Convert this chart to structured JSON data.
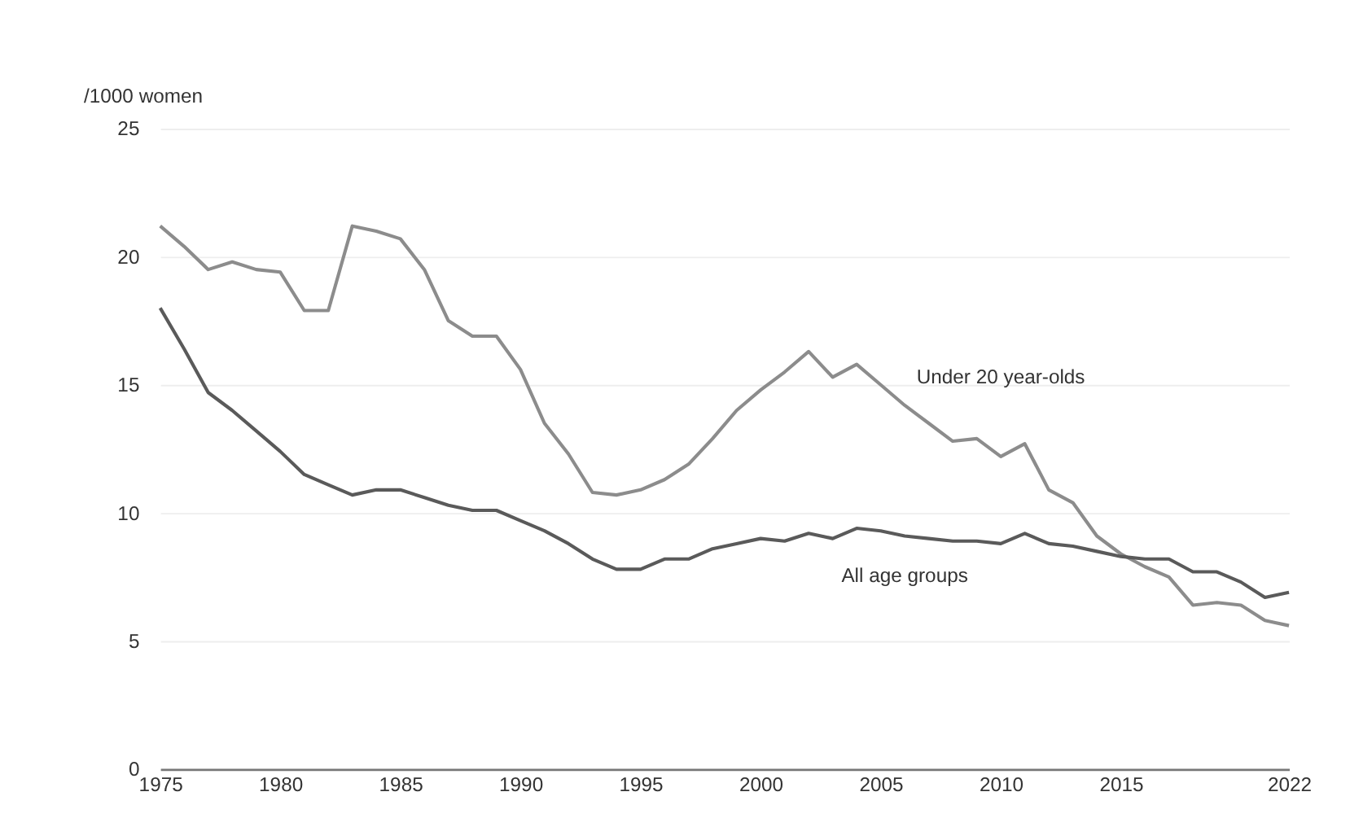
{
  "chart_data": {
    "type": "line",
    "ylabel": "/1000 women",
    "x": [
      1975,
      1976,
      1977,
      1978,
      1979,
      1980,
      1981,
      1982,
      1983,
      1984,
      1985,
      1986,
      1987,
      1988,
      1989,
      1990,
      1991,
      1992,
      1993,
      1994,
      1995,
      1996,
      1997,
      1998,
      1999,
      2000,
      2001,
      2002,
      2003,
      2004,
      2005,
      2006,
      2007,
      2008,
      2009,
      2010,
      2011,
      2012,
      2013,
      2014,
      2015,
      2016,
      2017,
      2018,
      2019,
      2020,
      2021,
      2022
    ],
    "series": [
      {
        "name": "Under 20 year-olds",
        "color": "#8c8c8c",
        "values": [
          21.2,
          20.4,
          19.5,
          19.8,
          19.5,
          19.4,
          17.9,
          17.9,
          21.2,
          21.0,
          20.7,
          19.5,
          17.5,
          16.9,
          16.9,
          15.6,
          13.5,
          12.3,
          10.8,
          10.7,
          10.9,
          11.3,
          11.9,
          12.9,
          14.0,
          14.8,
          15.5,
          16.3,
          15.3,
          15.8,
          15.0,
          14.2,
          13.5,
          12.8,
          12.9,
          12.2,
          12.7,
          10.9,
          10.4,
          9.1,
          8.4,
          7.9,
          7.5,
          6.4,
          6.5,
          6.4,
          5.8,
          5.6
        ]
      },
      {
        "name": "All age groups",
        "color": "#5a5a5a",
        "values": [
          18.0,
          16.4,
          14.7,
          14.0,
          13.2,
          12.4,
          11.5,
          11.1,
          10.7,
          10.9,
          10.9,
          10.6,
          10.3,
          10.1,
          10.1,
          9.7,
          9.3,
          8.8,
          8.2,
          7.8,
          7.8,
          8.2,
          8.2,
          8.6,
          8.8,
          9.0,
          8.9,
          9.2,
          9.0,
          9.4,
          9.3,
          9.1,
          9.0,
          8.9,
          8.9,
          8.8,
          9.2,
          8.8,
          8.7,
          8.5,
          8.3,
          8.2,
          8.2,
          7.7,
          7.7,
          7.3,
          6.7,
          6.9
        ]
      }
    ],
    "xlim": [
      1975,
      2022
    ],
    "xticks": [
      1975,
      1980,
      1985,
      1990,
      1995,
      2000,
      2005,
      2010,
      2015,
      2022
    ],
    "ylim": [
      0,
      25
    ],
    "yticks": [
      0,
      5,
      10,
      15,
      20,
      25
    ],
    "grid": "y",
    "marker": "none",
    "line_style": "solid"
  }
}
